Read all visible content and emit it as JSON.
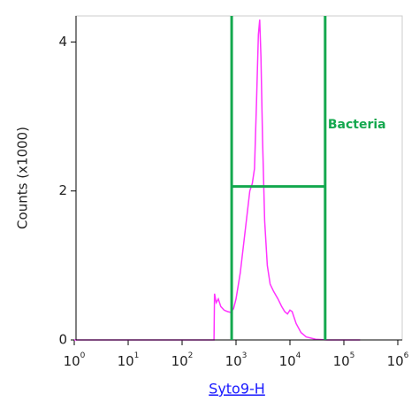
{
  "chart_data": {
    "type": "histogram-line",
    "xlabel": "Syto9-H",
    "ylabel": "Counts (x1000)",
    "xscale": "log",
    "xlim": [
      1,
      1000000
    ],
    "ylim": [
      0,
      4.35
    ],
    "xticks": [
      {
        "value": 1,
        "label": "10^0"
      },
      {
        "value": 10,
        "label": "10^1"
      },
      {
        "value": 100,
        "label": "10^2"
      },
      {
        "value": 1000,
        "label": "10^3"
      },
      {
        "value": 10000,
        "label": "10^4"
      },
      {
        "value": 100000,
        "label": "10^5"
      },
      {
        "value": 1000000,
        "label": "10^6"
      }
    ],
    "yticks": [
      0,
      2,
      4
    ],
    "color": "#ff33ff",
    "x": [
      1,
      100,
      300,
      390,
      400,
      430,
      470,
      520,
      600,
      700,
      800,
      900,
      1000,
      1200,
      1500,
      1800,
      2000,
      2200,
      2400,
      2600,
      2750,
      2900,
      3100,
      3400,
      3800,
      4300,
      5000,
      6000,
      7000,
      8000,
      9000,
      10000,
      11000,
      13000,
      16000,
      20000,
      30000,
      50000,
      100000,
      200000
    ],
    "values": [
      0,
      0,
      0,
      0,
      0.62,
      0.5,
      0.55,
      0.45,
      0.4,
      0.38,
      0.37,
      0.42,
      0.55,
      0.9,
      1.5,
      2.0,
      2.1,
      2.3,
      3.2,
      4.1,
      4.3,
      3.8,
      2.7,
      1.6,
      1.0,
      0.75,
      0.65,
      0.55,
      0.45,
      0.38,
      0.35,
      0.4,
      0.38,
      0.22,
      0.1,
      0.04,
      0.01,
      0,
      0,
      0
    ],
    "gates": [
      {
        "name": "Bacteria",
        "range": [
          830,
          45000
        ],
        "y": 2.06,
        "color": "#13a84e"
      }
    ]
  }
}
